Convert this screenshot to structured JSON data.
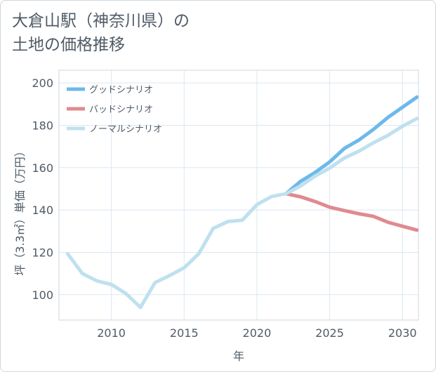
{
  "chart_data": {
    "type": "line",
    "title_lines": [
      "大倉山駅（神奈川県）の",
      "土地の価格推移"
    ],
    "xlabel": "年",
    "ylabel": "坪（3.3㎡）単価（万円）",
    "xlim": [
      2006.4,
      2031.1
    ],
    "ylim": [
      88,
      206
    ],
    "xticks": [
      2010,
      2015,
      2020,
      2025,
      2030
    ],
    "yticks": [
      100,
      120,
      140,
      160,
      180,
      200
    ],
    "grid": true,
    "legend_position": "top-left",
    "series": [
      {
        "name": "グッドシナリオ",
        "color": "#6db9ea",
        "x": [
          2022,
          2023,
          2024,
          2025,
          2026,
          2027,
          2028,
          2029,
          2030,
          2031
        ],
        "values": [
          147.7,
          153.5,
          157.7,
          162.7,
          169.0,
          173.0,
          178.0,
          183.7,
          188.5,
          193.3
        ]
      },
      {
        "name": "バッドシナリオ",
        "color": "#e08a8f",
        "x": [
          2022,
          2023,
          2024,
          2025,
          2026,
          2027,
          2028,
          2029,
          2030,
          2031
        ],
        "values": [
          147.7,
          146.2,
          144.0,
          141.3,
          139.7,
          138.2,
          137.0,
          134.2,
          132.3,
          130.5
        ]
      },
      {
        "name": "ノーマルシナリオ",
        "color": "#bfe0ee",
        "x": [
          2007,
          2008,
          2009,
          2010,
          2011,
          2012,
          2013,
          2014,
          2015,
          2016,
          2017,
          2018,
          2019,
          2020,
          2021,
          2022,
          2023,
          2024,
          2025,
          2026,
          2027,
          2028,
          2029,
          2030,
          2031
        ],
        "values": [
          119.3,
          110.0,
          106.5,
          104.8,
          100.5,
          94.0,
          105.7,
          109.0,
          112.7,
          119.3,
          131.3,
          134.5,
          135.2,
          142.5,
          146.3,
          147.7,
          151.3,
          156.0,
          159.8,
          164.5,
          167.7,
          171.7,
          175.2,
          179.5,
          183.2
        ]
      }
    ]
  }
}
